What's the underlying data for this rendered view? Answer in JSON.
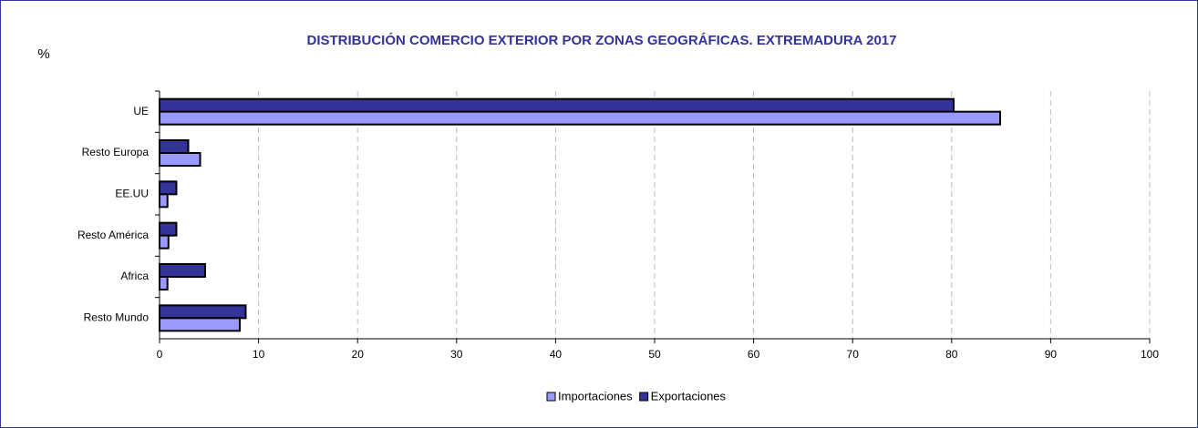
{
  "chart_data": {
    "type": "hbar",
    "title": "DISTRIBUCIÓN COMERCIO EXTERIOR POR ZONAS GEOGRÁFICAS. EXTREMADURA 2017",
    "y_label": "%",
    "categories": [
      "UE",
      "Resto Europa",
      "EE.UU",
      "Resto América",
      "Africa",
      "Resto Mundo"
    ],
    "series": [
      {
        "name": "Importaciones",
        "color": "#9999ff",
        "values": [
          84.9,
          4.1,
          0.8,
          0.9,
          0.8,
          8.1
        ]
      },
      {
        "name": "Exportaciones",
        "color": "#333399",
        "values": [
          80.2,
          2.9,
          1.7,
          1.7,
          4.6,
          8.7
        ]
      }
    ],
    "xlim": [
      0,
      100
    ],
    "xticks": [
      0,
      10,
      20,
      30,
      40,
      50,
      60,
      70,
      80,
      90,
      100
    ],
    "grid": true,
    "legend": "bottom"
  }
}
